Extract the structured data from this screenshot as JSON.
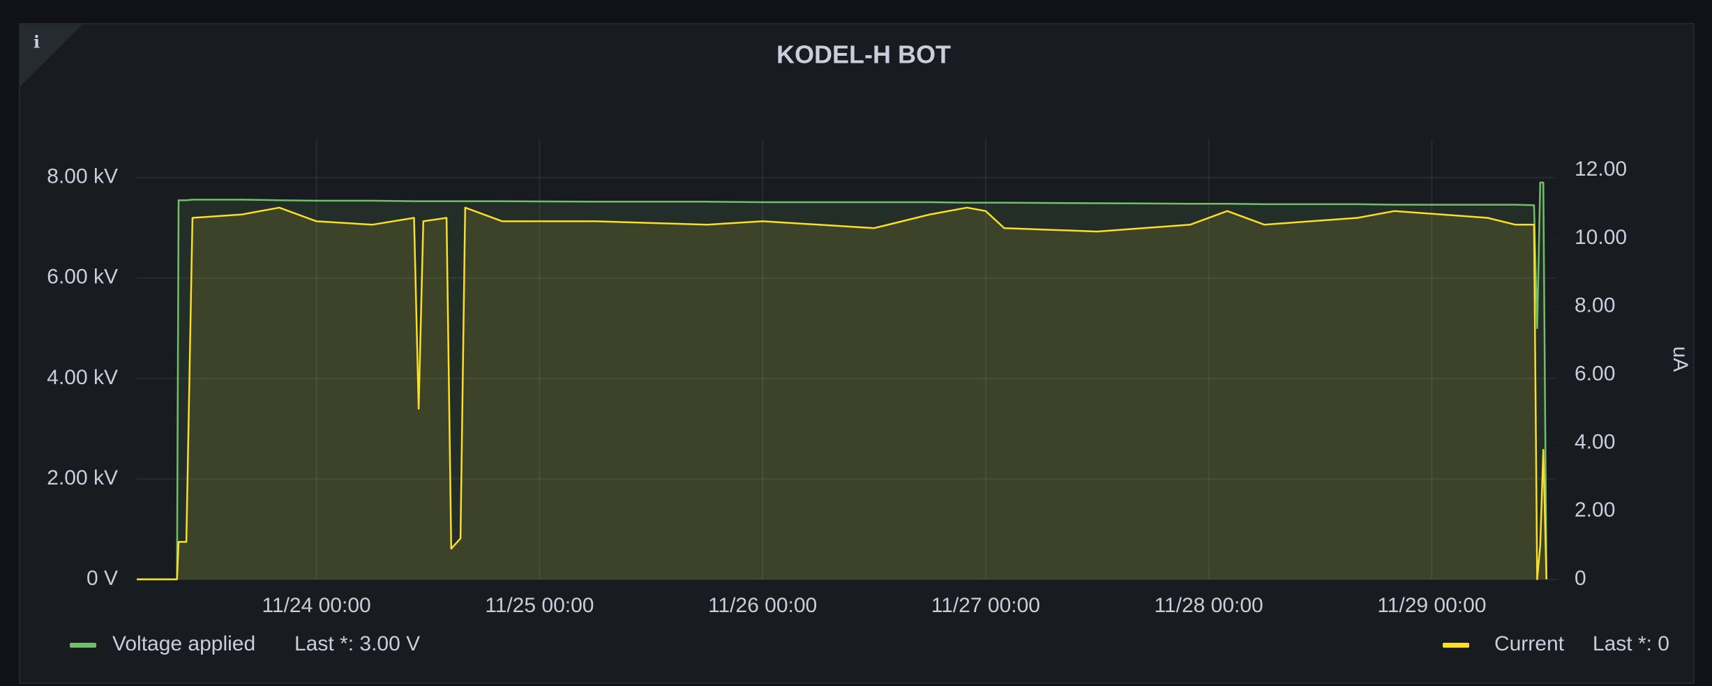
{
  "chart_data": {
    "type": "line",
    "title": "KODEL-H BOT",
    "y2label": "uA",
    "x": [
      "11/23 04:40",
      "11/23 09:00",
      "11/23 09:10",
      "11/23 10:00",
      "11/23 10:40",
      "11/23 16:00",
      "11/23 20:00",
      "11/24 00:00",
      "11/24 06:00",
      "11/24 10:30",
      "11/24 11:00",
      "11/24 11:30",
      "11/24 14:00",
      "11/24 14:30",
      "11/24 15:30",
      "11/24 16:00",
      "11/24 20:00",
      "11/25 06:00",
      "11/25 18:00",
      "11/26 00:00",
      "11/26 06:00",
      "11/26 12:00",
      "11/26 18:00",
      "11/26 22:00",
      "11/27 00:00",
      "11/27 02:00",
      "11/27 12:00",
      "11/27 22:00",
      "11/28 02:00",
      "11/28 06:00",
      "11/28 16:00",
      "11/28 20:00",
      "11/29 06:00",
      "11/29 09:00",
      "11/29 11:00",
      "11/29 11:20",
      "11/29 11:40",
      "11/29 12:00",
      "11/29 12:20"
    ],
    "series": [
      {
        "name": "Voltage applied",
        "legend_last": "Last *: 3.00 V",
        "color": "#73bf69",
        "axis": "y",
        "values": [
          0,
          0,
          7550,
          7550,
          7560,
          7560,
          7550,
          7540,
          7540,
          7530,
          7530,
          7530,
          7530,
          7530,
          7530,
          7530,
          7530,
          7520,
          7520,
          7510,
          7510,
          7510,
          7510,
          7500,
          7500,
          7500,
          7490,
          7480,
          7480,
          7470,
          7470,
          7460,
          7460,
          7460,
          7450,
          5000,
          7900,
          7900,
          3
        ]
      },
      {
        "name": "Current",
        "legend_last": "Last *: 0",
        "color": "#fade2a",
        "axis": "y2",
        "values": [
          0,
          0,
          1.1,
          1.1,
          10.6,
          10.7,
          10.9,
          10.5,
          10.4,
          10.6,
          5.0,
          10.5,
          10.6,
          0.9,
          1.2,
          10.9,
          10.5,
          10.5,
          10.4,
          10.5,
          10.4,
          10.3,
          10.7,
          10.9,
          10.8,
          10.3,
          10.2,
          10.4,
          10.8,
          10.4,
          10.6,
          10.8,
          10.6,
          10.4,
          10.4,
          0,
          1.0,
          3.8,
          0
        ]
      }
    ],
    "xlim": [
      "11/23 04:40",
      "11/29 13:20"
    ],
    "xticks": [
      "11/24 00:00",
      "11/25 00:00",
      "11/26 00:00",
      "11/27 00:00",
      "11/28 00:00",
      "11/29 00:00"
    ],
    "ylim": [
      0,
      8760
    ],
    "yticks": [
      {
        "value": 0,
        "label": "0 V"
      },
      {
        "value": 2000,
        "label": "2.00 kV"
      },
      {
        "value": 4000,
        "label": "4.00 kV"
      },
      {
        "value": 6000,
        "label": "6.00 kV"
      },
      {
        "value": 8000,
        "label": "8.00 kV"
      }
    ],
    "y2lim": [
      0,
      12.9
    ],
    "y2ticks": [
      {
        "value": 0,
        "label": "0"
      },
      {
        "value": 2,
        "label": "2.00"
      },
      {
        "value": 4,
        "label": "4.00"
      },
      {
        "value": 6,
        "label": "6.00"
      },
      {
        "value": 8,
        "label": "8.00"
      },
      {
        "value": 10,
        "label": "10.00"
      },
      {
        "value": 12,
        "label": "12.00"
      }
    ],
    "grid": true
  }
}
